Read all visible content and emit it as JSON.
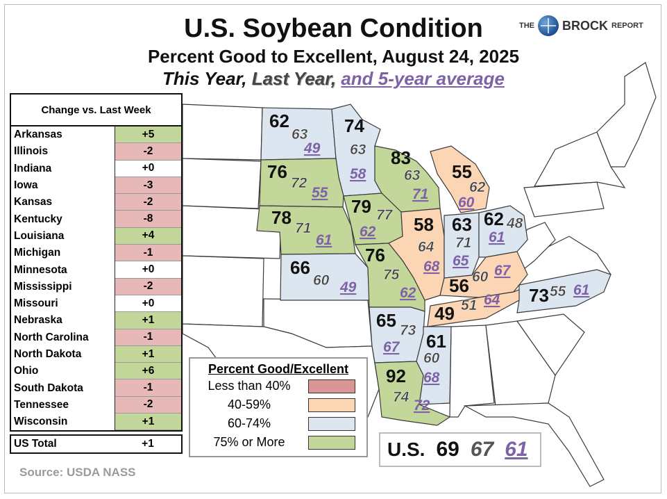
{
  "header": {
    "title": "U.S. Soybean Condition",
    "subtitle": "Percent Good to Excellent, August 24, 2025",
    "subtitle_this": "This Year,",
    "subtitle_last": "Last Year,",
    "subtitle_and": "and 5-year average"
  },
  "logo": {
    "pre": "THE",
    "brand": "BROCK",
    "post": "REPORT"
  },
  "change_table": {
    "heading": "Change vs. Last Week",
    "rows": [
      {
        "state": "Arkansas",
        "change": "+5"
      },
      {
        "state": "Illinois",
        "change": "-2"
      },
      {
        "state": "Indiana",
        "change": "+0"
      },
      {
        "state": "Iowa",
        "change": "-3"
      },
      {
        "state": "Kansas",
        "change": "-2"
      },
      {
        "state": "Kentucky",
        "change": "-8"
      },
      {
        "state": "Louisiana",
        "change": "+4"
      },
      {
        "state": "Michigan",
        "change": "-1"
      },
      {
        "state": "Minnesota",
        "change": "+0"
      },
      {
        "state": "Mississippi",
        "change": "-2"
      },
      {
        "state": "Missouri",
        "change": "+0"
      },
      {
        "state": "Nebraska",
        "change": "+1"
      },
      {
        "state": "North Carolina",
        "change": "-1"
      },
      {
        "state": "North Dakota",
        "change": "+1"
      },
      {
        "state": "Ohio",
        "change": "+6"
      },
      {
        "state": "South Dakota",
        "change": "-1"
      },
      {
        "state": "Tennessee",
        "change": "-2"
      },
      {
        "state": "Wisconsin",
        "change": "+1"
      }
    ],
    "total_label": "US Total",
    "total_change": "+1",
    "colors": {
      "positive": "#c4d79b",
      "negative": "#e6b8b7",
      "zero": "#ffffff"
    }
  },
  "states": [
    {
      "name": "North Dakota",
      "now": "62",
      "last": "63",
      "avg": "49",
      "color": "#dce6f1"
    },
    {
      "name": "Minnesota",
      "now": "74",
      "last": "63",
      "avg": "58",
      "color": "#dce6f1"
    },
    {
      "name": "Wisconsin",
      "now": "83",
      "last": "63",
      "avg": "71",
      "color": "#c4d79b"
    },
    {
      "name": "Michigan",
      "now": "55",
      "last": "62",
      "avg": "60",
      "color": "#fcd5b4"
    },
    {
      "name": "South Dakota",
      "now": "76",
      "last": "72",
      "avg": "55",
      "color": "#c4d79b"
    },
    {
      "name": "Nebraska",
      "now": "78",
      "last": "71",
      "avg": "61",
      "color": "#c4d79b"
    },
    {
      "name": "Iowa",
      "now": "79",
      "last": "77",
      "avg": "62",
      "color": "#c4d79b"
    },
    {
      "name": "Illinois",
      "now": "58",
      "last": "64",
      "avg": "68",
      "color": "#fcd5b4"
    },
    {
      "name": "Indiana",
      "now": "63",
      "last": "71",
      "avg": "65",
      "color": "#dce6f1"
    },
    {
      "name": "Ohio",
      "now": "62",
      "last": "48",
      "avg": "61",
      "color": "#dce6f1"
    },
    {
      "name": "Kansas",
      "now": "66",
      "last": "60",
      "avg": "49",
      "color": "#dce6f1"
    },
    {
      "name": "Missouri",
      "now": "76",
      "last": "75",
      "avg": "62",
      "color": "#c4d79b"
    },
    {
      "name": "Kentucky",
      "now": "56",
      "last": "60",
      "avg": "67",
      "color": "#fcd5b4"
    },
    {
      "name": "Tennessee",
      "now": "49",
      "last": "51",
      "avg": "64",
      "color": "#fcd5b4"
    },
    {
      "name": "North Carolina",
      "now": "73",
      "last": "55",
      "avg": "61",
      "color": "#dce6f1"
    },
    {
      "name": "Arkansas",
      "now": "65",
      "last": "73",
      "avg": "67",
      "color": "#dce6f1"
    },
    {
      "name": "Mississippi",
      "now": "61",
      "last": "60",
      "avg": "68",
      "color": "#dce6f1"
    },
    {
      "name": "Louisiana",
      "now": "92",
      "last": "74",
      "avg": "72",
      "color": "#c4d79b"
    }
  ],
  "legend": {
    "title": "Percent Good/Excellent",
    "items": [
      {
        "label": "Less than 40%",
        "color": "#da9694"
      },
      {
        "label": "40-59%",
        "color": "#fcd5b4"
      },
      {
        "label": "60-74%",
        "color": "#dce6f1"
      },
      {
        "label": "75% or More",
        "color": "#c4d79b"
      }
    ]
  },
  "us_total": {
    "label": "U.S.",
    "now": "69",
    "last": "67",
    "avg": "61"
  },
  "source": "Source: USDA NASS"
}
